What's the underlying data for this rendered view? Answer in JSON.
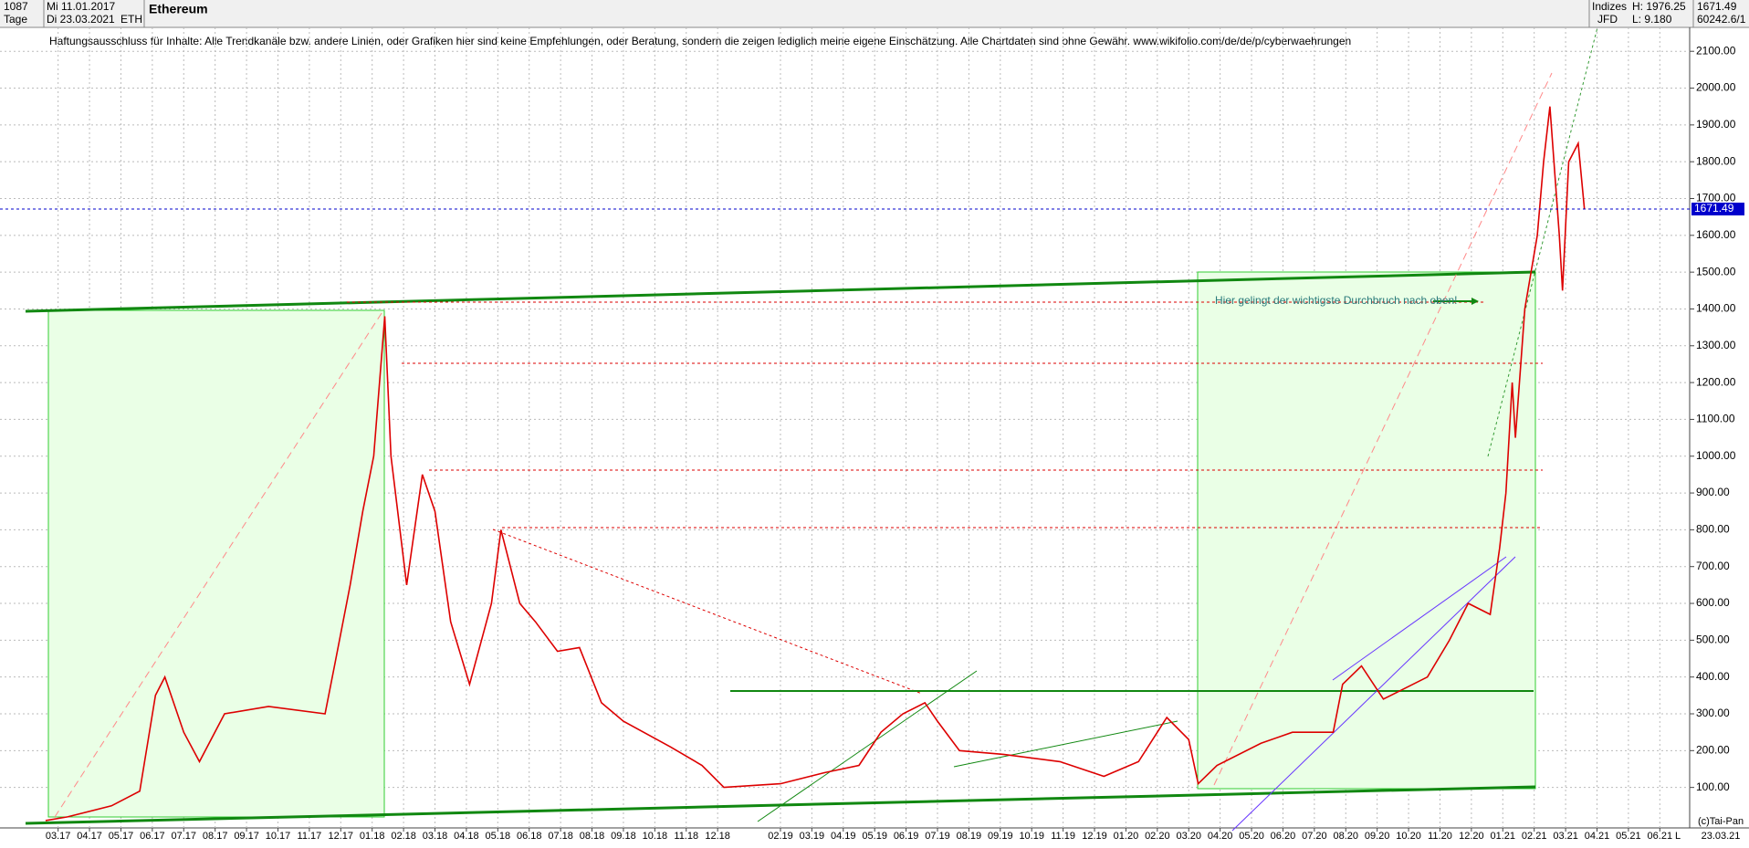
{
  "header": {
    "count": "1087",
    "period": "Tage",
    "start_date": "Mi 11.01.2017",
    "end_date": "Di 23.03.2021",
    "symbol": "ETH",
    "name": "Ethereum",
    "market": "Indizes",
    "broker": "JFD",
    "high": "H: 1976.25",
    "low": "L: 9.180",
    "last": "1671.49",
    "volume": "60242.6/1"
  },
  "chart_data": {
    "type": "line",
    "title": "Ethereum",
    "subtitle": "Haftungsausschluss für Inhalte: Alle Trendkanäle bzw. andere Linien, oder Grafiken hier sind keine Empfehlungen, oder Beratung, sondern die zeigen lediglich meine eigene Einschätzung. Alle Chartdaten sind ohne Gewähr.  www.wikifolio.com/de/de/p/cyberwaehrungen",
    "annotation": "Hier gelingt der wichtigste Durchbruch nach oben!",
    "current_price": 1671.49,
    "footer": "(c)Tai-Pan",
    "scale_mode": "L",
    "footer_date": "23.03.21",
    "x": [
      -0.4,
      0.3,
      1.7,
      2.6,
      3.1,
      3.4,
      4.0,
      4.5,
      5.3,
      6.7,
      8.5,
      8.8,
      9.3,
      9.7,
      10.05,
      10.4,
      10.6,
      11.1,
      11.6,
      12.0,
      12.5,
      13.1,
      13.8,
      14.1,
      14.7,
      15.2,
      15.9,
      16.6,
      17.3,
      18.0,
      19.5,
      20.5,
      21.2,
      23.0,
      24.4,
      25.5,
      26.2,
      26.9,
      27.6,
      28.0,
      28.7,
      30.1,
      31.9,
      33.3,
      34.4,
      35.3,
      36.0,
      36.3,
      36.9,
      38.3,
      39.3,
      40.6,
      40.9,
      41.5,
      42.2,
      43.6,
      44.3,
      44.9,
      45.6,
      45.9,
      46.1,
      46.3,
      46.4,
      46.7,
      47.1,
      47.3,
      47.5,
      47.8,
      47.9,
      48.1,
      48.4,
      48.6
    ],
    "series": [
      {
        "name": "ETH",
        "color": "#dd0000",
        "values": [
          10,
          20,
          50,
          90,
          350,
          400,
          250,
          170,
          300,
          320,
          300,
          430,
          650,
          850,
          1000,
          1380,
          1000,
          650,
          950,
          850,
          550,
          380,
          600,
          800,
          600,
          550,
          470,
          480,
          330,
          280,
          210,
          160,
          100,
          110,
          140,
          160,
          250,
          300,
          330,
          280,
          200,
          190,
          170,
          130,
          170,
          290,
          230,
          110,
          160,
          220,
          250,
          250,
          380,
          430,
          340,
          400,
          500,
          600,
          570,
          750,
          900,
          1200,
          1050,
          1400,
          1600,
          1800,
          1950,
          1600,
          1450,
          1800,
          1850,
          1671.49
        ]
      }
    ],
    "xlim": [
      -1.85,
      51.95
    ],
    "xticks": [
      {
        "value": 0,
        "label": "03.17"
      },
      {
        "value": 1,
        "label": "04.17"
      },
      {
        "value": 2,
        "label": "05.17"
      },
      {
        "value": 3,
        "label": "06.17"
      },
      {
        "value": 4,
        "label": "07.17"
      },
      {
        "value": 5,
        "label": "08.17"
      },
      {
        "value": 6,
        "label": "09.17"
      },
      {
        "value": 7,
        "label": "10.17"
      },
      {
        "value": 8,
        "label": "11.17"
      },
      {
        "value": 9,
        "label": "12.17"
      },
      {
        "value": 10,
        "label": "01.18"
      },
      {
        "value": 11,
        "label": "02.18"
      },
      {
        "value": 12,
        "label": "03.18"
      },
      {
        "value": 13,
        "label": "04.18"
      },
      {
        "value": 14,
        "label": "05.18"
      },
      {
        "value": 15,
        "label": "06.18"
      },
      {
        "value": 16,
        "label": "07.18"
      },
      {
        "value": 17,
        "label": "08.18"
      },
      {
        "value": 18,
        "label": "09.18"
      },
      {
        "value": 19,
        "label": "10.18"
      },
      {
        "value": 20,
        "label": "11.18"
      },
      {
        "value": 21,
        "label": "12.18"
      },
      {
        "value": 23,
        "label": "02.19"
      },
      {
        "value": 24,
        "label": "03.19"
      },
      {
        "value": 25,
        "label": "04.19"
      },
      {
        "value": 26,
        "label": "05.19"
      },
      {
        "value": 27,
        "label": "06.19"
      },
      {
        "value": 28,
        "label": "07.19"
      },
      {
        "value": 29,
        "label": "08.19"
      },
      {
        "value": 30,
        "label": "09.19"
      },
      {
        "value": 31,
        "label": "10.19"
      },
      {
        "value": 32,
        "label": "11.19"
      },
      {
        "value": 33,
        "label": "12.19"
      },
      {
        "value": 34,
        "label": "01.20"
      },
      {
        "value": 35,
        "label": "02.20"
      },
      {
        "value": 36,
        "label": "03.20"
      },
      {
        "value": 37,
        "label": "04.20"
      },
      {
        "value": 38,
        "label": "05.20"
      },
      {
        "value": 39,
        "label": "06.20"
      },
      {
        "value": 40,
        "label": "07.20"
      },
      {
        "value": 41,
        "label": "08.20"
      },
      {
        "value": 42,
        "label": "09.20"
      },
      {
        "value": 43,
        "label": "10.20"
      },
      {
        "value": 44,
        "label": "11.20"
      },
      {
        "value": 45,
        "label": "12.20"
      },
      {
        "value": 46,
        "label": "01.21"
      },
      {
        "value": 47,
        "label": "02.21"
      },
      {
        "value": 48,
        "label": "03.21"
      },
      {
        "value": 49,
        "label": "04.21"
      },
      {
        "value": 50,
        "label": "05.21"
      },
      {
        "value": 51,
        "label": "06.21"
      }
    ],
    "ylim": [
      -10,
      2165
    ],
    "yticks": [
      {
        "value": 100,
        "label": "100.00"
      },
      {
        "value": 200,
        "label": "200.00"
      },
      {
        "value": 300,
        "label": "300.00"
      },
      {
        "value": 400,
        "label": "400.00"
      },
      {
        "value": 500,
        "label": "500.00"
      },
      {
        "value": 600,
        "label": "600.00"
      },
      {
        "value": 700,
        "label": "700.00"
      },
      {
        "value": 800,
        "label": "800.00"
      },
      {
        "value": 900,
        "label": "900.00"
      },
      {
        "value": 1000,
        "label": "1000.00"
      },
      {
        "value": 1100,
        "label": "1100.00"
      },
      {
        "value": 1200,
        "label": "1200.00"
      },
      {
        "value": 1300,
        "label": "1300.00"
      },
      {
        "value": 1400,
        "label": "1400.00"
      },
      {
        "value": 1500,
        "label": "1500.00"
      },
      {
        "value": 1600,
        "label": "1600.00"
      },
      {
        "value": 1700,
        "label": "1700.00"
      },
      {
        "value": 1800,
        "label": "1800.00"
      },
      {
        "value": 1900,
        "label": "1900.00"
      },
      {
        "value": 2000,
        "label": "2000.00"
      },
      {
        "value": 2100,
        "label": "2100.00"
      }
    ],
    "grid": true
  }
}
